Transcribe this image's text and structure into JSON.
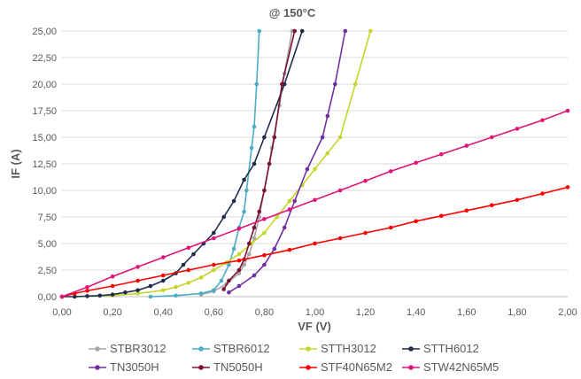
{
  "chart_data": {
    "type": "line",
    "title": "@ 150°C",
    "xlabel": "VF (V)",
    "ylabel": "IF (A)",
    "xlim": [
      0,
      2.0
    ],
    "ylim": [
      0,
      25
    ],
    "x_ticks": [
      "0,00",
      "0,20",
      "0,40",
      "0,60",
      "0,80",
      "1,00",
      "1,20",
      "1,40",
      "1,60",
      "1,80",
      "2,00"
    ],
    "y_ticks": [
      "0,00",
      "2,50",
      "5,00",
      "7,50",
      "10,00",
      "12,50",
      "15,00",
      "17,50",
      "20,00",
      "22,50",
      "25,00"
    ],
    "grid": "horizontal",
    "legend_position": "bottom",
    "series": [
      {
        "name": "STBR3012",
        "color": "#a6a6a6",
        "points": [
          [
            0.55,
            0.2
          ],
          [
            0.6,
            0.5
          ],
          [
            0.65,
            1.2
          ],
          [
            0.7,
            2.2
          ],
          [
            0.72,
            3.0
          ],
          [
            0.74,
            4.0
          ],
          [
            0.76,
            5.5
          ],
          [
            0.78,
            7.5
          ],
          [
            0.8,
            10.0
          ],
          [
            0.83,
            14.0
          ],
          [
            0.86,
            18.0
          ],
          [
            0.88,
            21.0
          ],
          [
            0.91,
            25.0
          ]
        ]
      },
      {
        "name": "STBR6012",
        "color": "#4bacc6",
        "points": [
          [
            0.35,
            0.0
          ],
          [
            0.45,
            0.1
          ],
          [
            0.55,
            0.3
          ],
          [
            0.6,
            0.6
          ],
          [
            0.63,
            1.5
          ],
          [
            0.66,
            3.0
          ],
          [
            0.68,
            4.5
          ],
          [
            0.7,
            6.5
          ],
          [
            0.72,
            8.0
          ],
          [
            0.73,
            10.0
          ],
          [
            0.75,
            14.0
          ],
          [
            0.76,
            16.0
          ],
          [
            0.77,
            20.0
          ],
          [
            0.78,
            25.0
          ]
        ]
      },
      {
        "name": "STTH3012",
        "color": "#c5d52a",
        "points": [
          [
            0.05,
            0.0
          ],
          [
            0.2,
            0.1
          ],
          [
            0.3,
            0.3
          ],
          [
            0.4,
            0.6
          ],
          [
            0.45,
            0.9
          ],
          [
            0.5,
            1.3
          ],
          [
            0.55,
            1.8
          ],
          [
            0.6,
            2.5
          ],
          [
            0.65,
            3.2
          ],
          [
            0.7,
            4.0
          ],
          [
            0.75,
            5.0
          ],
          [
            0.8,
            6.0
          ],
          [
            0.85,
            7.5
          ],
          [
            0.9,
            9.0
          ],
          [
            0.95,
            10.5
          ],
          [
            1.0,
            12.0
          ],
          [
            1.05,
            13.5
          ],
          [
            1.1,
            15.0
          ],
          [
            1.16,
            20.0
          ],
          [
            1.22,
            25.0
          ]
        ]
      },
      {
        "name": "STTH6012",
        "color": "#1f2d4d",
        "points": [
          [
            0.0,
            0.0
          ],
          [
            0.05,
            0.0
          ],
          [
            0.1,
            0.05
          ],
          [
            0.15,
            0.1
          ],
          [
            0.2,
            0.2
          ],
          [
            0.25,
            0.4
          ],
          [
            0.3,
            0.6
          ],
          [
            0.35,
            1.0
          ],
          [
            0.4,
            1.5
          ],
          [
            0.45,
            2.2
          ],
          [
            0.48,
            3.0
          ],
          [
            0.52,
            4.0
          ],
          [
            0.56,
            5.0
          ],
          [
            0.6,
            6.0
          ],
          [
            0.64,
            7.5
          ],
          [
            0.68,
            9.0
          ],
          [
            0.72,
            11.0
          ],
          [
            0.76,
            12.5
          ],
          [
            0.8,
            15.0
          ],
          [
            0.88,
            20.0
          ],
          [
            0.95,
            25.0
          ]
        ]
      },
      {
        "name": "TN3050H",
        "color": "#7030a0",
        "points": [
          [
            0.66,
            0.4
          ],
          [
            0.7,
            1.0
          ],
          [
            0.76,
            2.0
          ],
          [
            0.8,
            3.0
          ],
          [
            0.84,
            4.5
          ],
          [
            0.88,
            6.5
          ],
          [
            0.92,
            9.0
          ],
          [
            0.97,
            12.0
          ],
          [
            1.03,
            15.0
          ],
          [
            1.05,
            17.0
          ],
          [
            1.08,
            20.0
          ],
          [
            1.12,
            25.0
          ]
        ]
      },
      {
        "name": "TN5050H",
        "color": "#7d1038",
        "points": [
          [
            0.64,
            0.7
          ],
          [
            0.66,
            1.5
          ],
          [
            0.7,
            2.5
          ],
          [
            0.72,
            3.5
          ],
          [
            0.74,
            5.0
          ],
          [
            0.76,
            6.5
          ],
          [
            0.78,
            8.0
          ],
          [
            0.8,
            10.0
          ],
          [
            0.82,
            12.5
          ],
          [
            0.84,
            15.0
          ],
          [
            0.87,
            20.0
          ],
          [
            0.92,
            25.0
          ]
        ]
      },
      {
        "name": "STF40N65M2",
        "color": "#ff0000",
        "points": [
          [
            0.0,
            0.0
          ],
          [
            0.05,
            0.3
          ],
          [
            0.1,
            0.55
          ],
          [
            0.2,
            1.0
          ],
          [
            0.3,
            1.5
          ],
          [
            0.4,
            2.0
          ],
          [
            0.5,
            2.5
          ],
          [
            0.6,
            3.0
          ],
          [
            0.7,
            3.4
          ],
          [
            0.8,
            3.9
          ],
          [
            0.9,
            4.4
          ],
          [
            1.0,
            5.0
          ],
          [
            1.1,
            5.5
          ],
          [
            1.2,
            6.0
          ],
          [
            1.3,
            6.5
          ],
          [
            1.4,
            7.1
          ],
          [
            1.5,
            7.6
          ],
          [
            1.6,
            8.1
          ],
          [
            1.7,
            8.6
          ],
          [
            1.8,
            9.1
          ],
          [
            1.9,
            9.7
          ],
          [
            2.0,
            10.3
          ]
        ]
      },
      {
        "name": "STW42N65M5",
        "color": "#e0157a",
        "points": [
          [
            0.0,
            0.0
          ],
          [
            0.1,
            0.9
          ],
          [
            0.2,
            1.9
          ],
          [
            0.3,
            2.8
          ],
          [
            0.4,
            3.7
          ],
          [
            0.5,
            4.6
          ],
          [
            0.6,
            5.5
          ],
          [
            0.7,
            6.4
          ],
          [
            0.8,
            7.3
          ],
          [
            0.9,
            8.2
          ],
          [
            1.0,
            9.1
          ],
          [
            1.1,
            10.0
          ],
          [
            1.2,
            10.9
          ],
          [
            1.3,
            11.8
          ],
          [
            1.4,
            12.6
          ],
          [
            1.5,
            13.4
          ],
          [
            1.6,
            14.2
          ],
          [
            1.7,
            15.0
          ],
          [
            1.8,
            15.8
          ],
          [
            1.9,
            16.6
          ],
          [
            2.0,
            17.5
          ]
        ]
      }
    ]
  }
}
